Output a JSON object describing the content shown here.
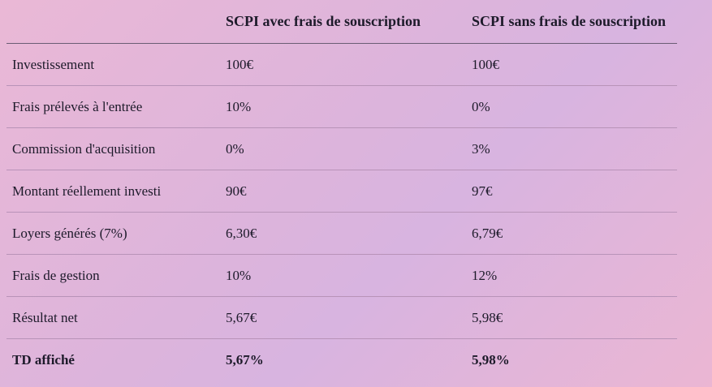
{
  "table": {
    "header": [
      "",
      "SCPI avec frais de souscription",
      "SCPI sans frais de souscription"
    ],
    "rows": [
      [
        "Investissement",
        "100€",
        "100€"
      ],
      [
        "Frais prélevés à l'entrée",
        "10%",
        "0%"
      ],
      [
        "Commission d'acquisition",
        "0%",
        "3%"
      ],
      [
        "Montant réellement investi",
        "90€",
        "97€"
      ],
      [
        "Loyers générés (7%)",
        "6,30€",
        "6,79€"
      ],
      [
        "Frais de gestion",
        "10%",
        "12%"
      ],
      [
        "Résultat net",
        "5,67€",
        "5,98€"
      ],
      [
        "TD affiché",
        "5,67%",
        "5,98%"
      ]
    ]
  }
}
